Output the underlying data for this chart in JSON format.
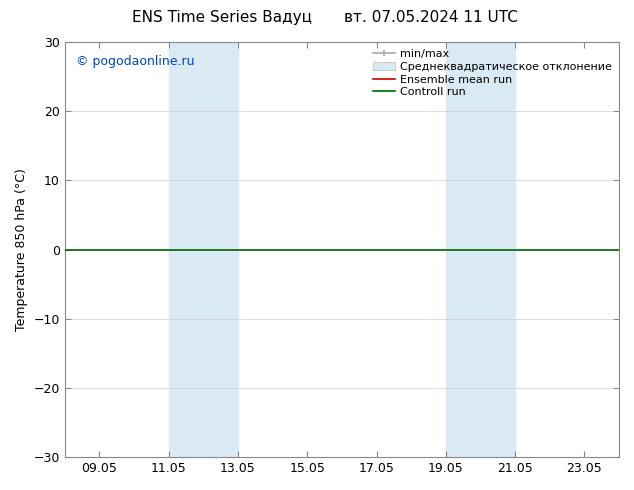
{
  "title_left": "ENS Time Series Вадуц",
  "title_right": "вт. 07.05.2024 11 UTC",
  "ylabel": "Temperature 850 hPa (°C)",
  "watermark": "© pogodaonline.ru",
  "ylim": [
    -30,
    30
  ],
  "yticks": [
    -30,
    -20,
    -10,
    0,
    10,
    20,
    30
  ],
  "xtick_labels": [
    "09.05",
    "11.05",
    "13.05",
    "15.05",
    "17.05",
    "19.05",
    "21.05",
    "23.05"
  ],
  "xtick_positions": [
    1,
    3,
    5,
    7,
    9,
    11,
    13,
    15
  ],
  "xlim": [
    0,
    16
  ],
  "shade_bands": [
    {
      "x_start": 3,
      "x_end": 5
    },
    {
      "x_start": 11,
      "x_end": 13
    }
  ],
  "shade_color": "#daeaf5",
  "line_y": 0,
  "line_color_green": "#006600",
  "line_color_red": "#cc0000",
  "background_color": "#ffffff",
  "plot_bg_color": "#ffffff",
  "legend_labels": [
    "min/max",
    "Среднеквадратическое отклонение",
    "Ensemble mean run",
    "Controll run"
  ],
  "legend_colors": [
    "#aaaaaa",
    "#daeaf5",
    "#cc0000",
    "#006600"
  ],
  "watermark_color": "#0044cc",
  "title_fontsize": 11,
  "ylabel_fontsize": 9,
  "tick_fontsize": 9,
  "legend_fontsize": 8,
  "watermark_fontsize": 9,
  "grid_color": "#cccccc",
  "spine_color": "#888888"
}
